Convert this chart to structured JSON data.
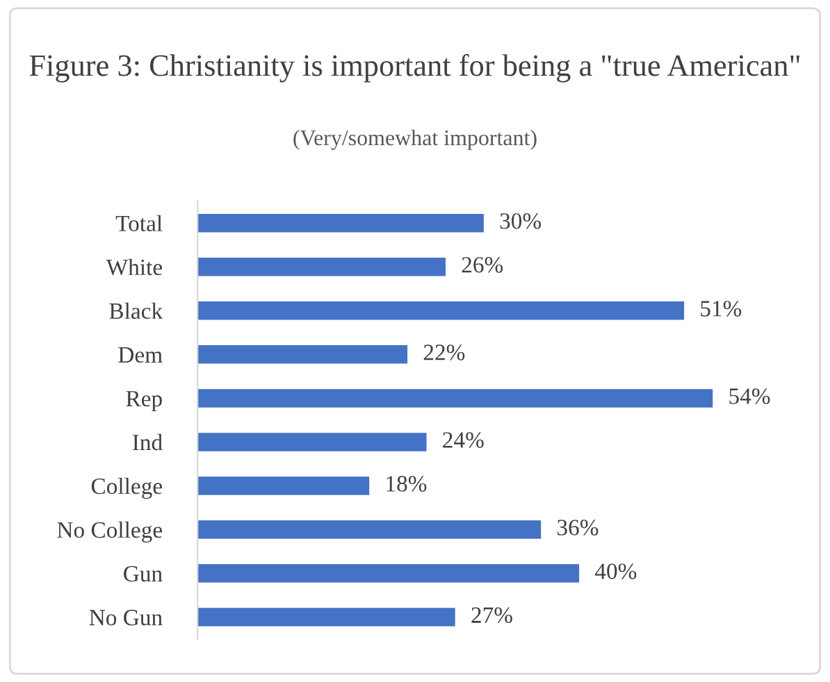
{
  "chart_data": {
    "type": "bar",
    "orientation": "horizontal",
    "title": "Figure 3: Christianity is important for being a \"true American\"",
    "subtitle": "(Very/somewhat important)",
    "categories": [
      "Total",
      "White",
      "Black",
      "Dem",
      "Rep",
      "Ind",
      "College",
      "No College",
      "Gun",
      "No Gun"
    ],
    "values": [
      30,
      26,
      51,
      22,
      54,
      24,
      18,
      36,
      40,
      27
    ],
    "value_labels": [
      "30%",
      "26%",
      "51%",
      "22%",
      "54%",
      "24%",
      "18%",
      "36%",
      "40%",
      "27%"
    ],
    "color": "#4472c4",
    "grid": false,
    "legend": false
  }
}
